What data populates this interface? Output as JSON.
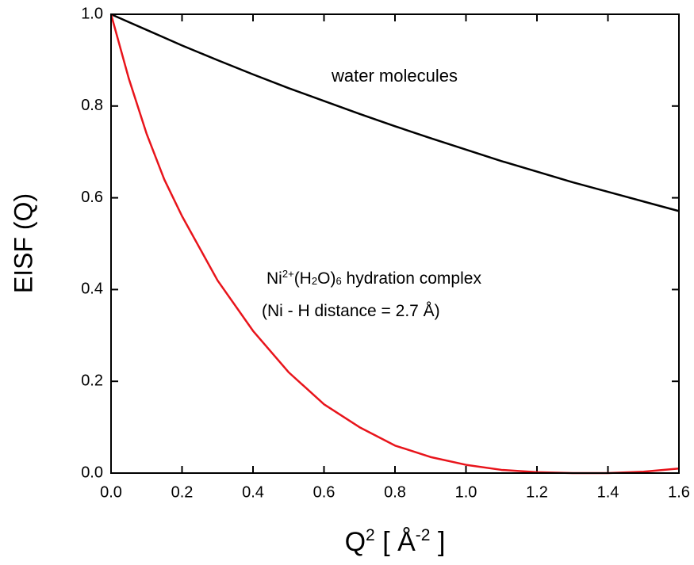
{
  "chart_data": {
    "type": "line",
    "y_label": "EISF (Q)",
    "x_label_parts": [
      "Q",
      "2",
      " [ Å",
      "-2",
      " ]"
    ],
    "annotations": [
      {
        "parts": [
          "Ni",
          "2+",
          "(H",
          "2",
          "O)",
          "6",
          " hydration complex"
        ],
        "color": "#e8141b"
      },
      {
        "parts": [
          "(Ni - H distance = 2.7 Å)"
        ],
        "color": "#e8141b"
      },
      {
        "parts": [
          "water molecules"
        ],
        "color": "#000000"
      }
    ],
    "x": [
      0,
      0.05,
      0.1,
      0.15,
      0.2,
      0.3,
      0.4,
      0.5,
      0.6,
      0.7,
      0.8,
      0.9,
      1.0,
      1.1,
      1.2,
      1.3,
      1.4,
      1.5,
      1.6
    ],
    "series": [
      {
        "color": "#000000",
        "values": [
          1.0,
          0.983,
          0.966,
          0.949,
          0.932,
          0.9,
          0.869,
          0.839,
          0.811,
          0.783,
          0.756,
          0.73,
          0.705,
          0.68,
          0.657,
          0.634,
          0.613,
          0.592,
          0.571
        ]
      },
      {
        "color": "#e8141b",
        "values": [
          1.0,
          0.86,
          0.74,
          0.64,
          0.56,
          0.42,
          0.31,
          0.22,
          0.15,
          0.1,
          0.06,
          0.035,
          0.018,
          0.007,
          0.002,
          0.0,
          0.0,
          0.003,
          0.01
        ]
      }
    ],
    "xlim": [
      0,
      1.6
    ],
    "ylim": [
      0,
      1.0
    ],
    "xticks": [
      {
        "value": 0,
        "label": "0.0"
      },
      {
        "value": 0.2,
        "label": "0.2"
      },
      {
        "value": 0.4,
        "label": "0.4"
      },
      {
        "value": 0.6,
        "label": "0.6"
      },
      {
        "value": 0.8,
        "label": "0.8"
      },
      {
        "value": 1.0,
        "label": "1.0"
      },
      {
        "value": 1.2,
        "label": "1.2"
      },
      {
        "value": 1.4,
        "label": "1.4"
      },
      {
        "value": 1.6,
        "label": "1.6"
      }
    ],
    "yticks": [
      {
        "value": 0,
        "label": "0.0"
      },
      {
        "value": 0.2,
        "label": "0.2"
      },
      {
        "value": 0.4,
        "label": "0.4"
      },
      {
        "value": 0.6,
        "label": "0.6"
      },
      {
        "value": 0.8,
        "label": "0.8"
      },
      {
        "value": 1.0,
        "label": "1.0"
      }
    ]
  }
}
